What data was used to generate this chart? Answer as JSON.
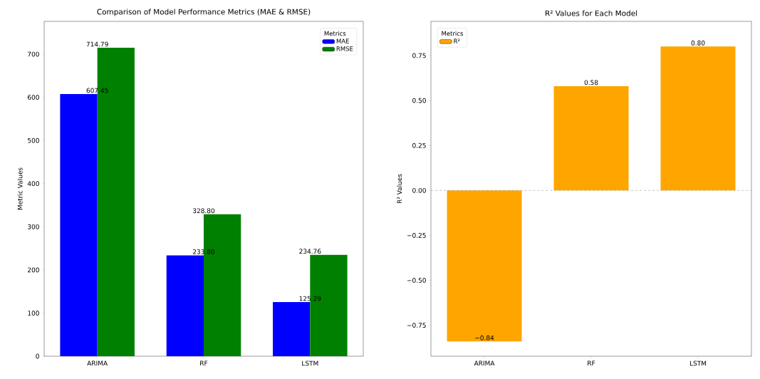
{
  "chart_data": [
    {
      "type": "bar",
      "title": "Comparison of Model Performance Metrics (MAE & RMSE)",
      "ylabel": "Metric Values",
      "categories": [
        "ARIMA",
        "RF",
        "LSTM"
      ],
      "series": [
        {
          "name": "MAE",
          "color": "#0000ff",
          "values": [
            607.45,
            233.8,
            125.29
          ],
          "value_labels": [
            "607.45",
            "233.80",
            "125.29"
          ]
        },
        {
          "name": "RMSE",
          "color": "#008000",
          "values": [
            714.79,
            328.8,
            234.76
          ],
          "value_labels": [
            "714.79",
            "328.80",
            "234.76"
          ]
        }
      ],
      "ylim": [
        0,
        776
      ],
      "yticks": [
        0,
        100,
        200,
        300,
        400,
        500,
        600,
        700
      ],
      "legend": "top right",
      "legend_title": "Metrics"
    },
    {
      "type": "bar",
      "title": "R² Values for Each Model",
      "ylabel": "R² Values",
      "categories": [
        "ARIMA",
        "RF",
        "LSTM"
      ],
      "series": [
        {
          "name": "R²",
          "color": "#ffa500",
          "values": [
            -0.84,
            0.58,
            0.8
          ],
          "value_labels": [
            "−0.84",
            "0.58",
            "0.80"
          ]
        }
      ],
      "ylim": [
        -0.922,
        0.94
      ],
      "yticks": [
        {
          "value": -0.75,
          "label": "−0.75"
        },
        {
          "value": -0.5,
          "label": "−0.50"
        },
        {
          "value": -0.25,
          "label": "−0.25"
        },
        {
          "value": 0,
          "label": "0.00"
        },
        0.25,
        {
          "value": 0.5,
          "label": "0.50"
        },
        0.75
      ],
      "ref_lines": [
        {
          "axis": "y",
          "value": 0,
          "color": "#999999",
          "line_style": "dashed"
        }
      ],
      "legend": "top left",
      "legend_title": "Metrics"
    }
  ]
}
